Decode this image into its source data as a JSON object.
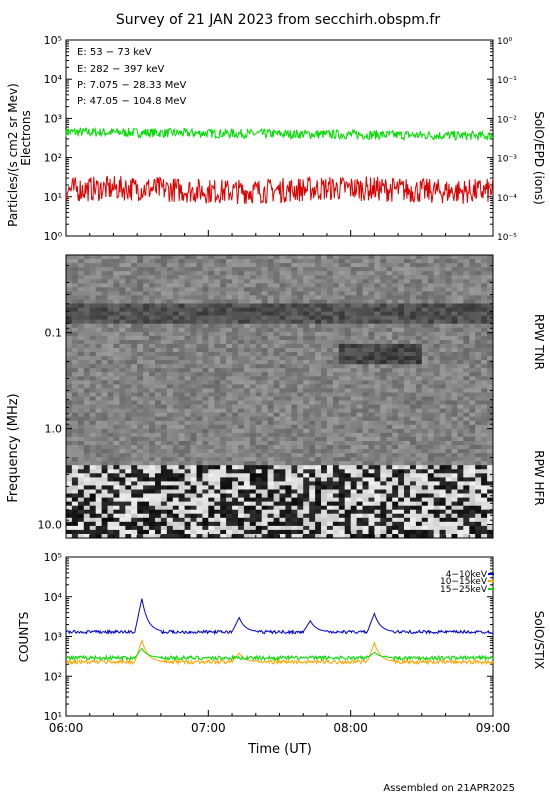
{
  "title": "Survey of 21 JAN 2023 from secchirh.obspm.fr",
  "footer": "Assembled on 21APR2025",
  "colors": {
    "green": "#00dd00",
    "red": "#dd0000",
    "black": "#000000",
    "blue": "#0000cc",
    "orange": "#ffa500"
  },
  "chart_data": [
    {
      "type": "line",
      "panel": "epd",
      "ylabel": "Particles/(s cm2 sr Mev)",
      "ylabel2": "Electrons",
      "right_label": "SolO/EPD (ions)",
      "yscale": "log",
      "ylim": [
        1,
        100000
      ],
      "y2lim": [
        1e-05,
        1
      ],
      "y_ticks": [
        "10⁰",
        "10¹",
        "10²",
        "10³",
        "10⁴",
        "10⁵"
      ],
      "y2_ticks": [
        "10⁻⁵",
        "10⁻⁴",
        "10⁻³",
        "10⁻²",
        "10⁻¹",
        "10⁰"
      ],
      "xlim": [
        "06:00",
        "09:00"
      ],
      "legend": [
        {
          "label": "E: 53 − 73 keV",
          "color": "#00dd00"
        },
        {
          "label": "E: 282 − 397 keV",
          "color": "#dd0000"
        },
        {
          "label": "P: 7.075 − 28.33 MeV",
          "color": "#000000"
        },
        {
          "label": "P: 47.05 − 104.8 MeV",
          "color": "#0000cc"
        }
      ],
      "series": [
        {
          "name": "E: 53 − 73 keV",
          "baseline": 450,
          "noise_decades": 0.12
        },
        {
          "name": "E: 282 − 397 keV",
          "baseline": 15,
          "noise_decades": 0.32
        }
      ]
    },
    {
      "type": "heatmap",
      "panel": "rpw",
      "ylabel": "Frequency (MHz)",
      "right_labels": [
        "RPW TNR",
        "RPW HFR"
      ],
      "yscale": "log",
      "ylim": [
        0.0155,
        13.8
      ],
      "y_ticks": [
        "0.1",
        "1.0",
        "10.0"
      ],
      "xlim": [
        "06:00",
        "09:00"
      ]
    },
    {
      "type": "line",
      "panel": "stix",
      "ylabel": "COUNTS",
      "right_label": "SolO/STIX",
      "xlabel": "Time (UT)",
      "yscale": "log",
      "ylim": [
        10,
        100000
      ],
      "y_ticks": [
        "10¹",
        "10²",
        "10³",
        "10⁴",
        "10⁵"
      ],
      "x_ticks": [
        "06:00",
        "07:00",
        "08:00",
        "09:00"
      ],
      "legend": [
        {
          "label": "4−10keV",
          "color": "#0000cc"
        },
        {
          "label": "10−15keV",
          "color": "#ffa500"
        },
        {
          "label": "15−25keV",
          "color": "#00dd00"
        }
      ],
      "series": [
        {
          "name": "4−10keV",
          "baseline": 1300,
          "peaks": [
            {
              "t": "06:32",
              "v": 9000
            },
            {
              "t": "07:13",
              "v": 3000
            },
            {
              "t": "07:43",
              "v": 2500
            },
            {
              "t": "08:10",
              "v": 3800
            }
          ]
        },
        {
          "name": "10−15keV",
          "baseline": 230,
          "peaks": [
            {
              "t": "06:32",
              "v": 800
            },
            {
              "t": "07:13",
              "v": 380
            },
            {
              "t": "08:10",
              "v": 700
            }
          ]
        },
        {
          "name": "15−25keV",
          "baseline": 290,
          "peaks": [
            {
              "t": "06:32",
              "v": 500
            },
            {
              "t": "08:10",
              "v": 400
            }
          ]
        }
      ]
    }
  ]
}
